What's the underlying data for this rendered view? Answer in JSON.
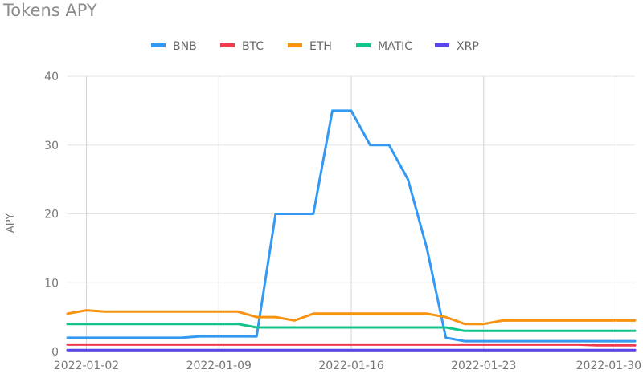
{
  "title": "Tokens APY",
  "chart_data": {
    "type": "line",
    "title": "Tokens APY",
    "xlabel": "",
    "ylabel": "APY",
    "ylim": [
      0,
      40
    ],
    "yticks": [
      0,
      10,
      20,
      30,
      40
    ],
    "x_tick_labels": [
      "2022-01-02",
      "2022-01-09",
      "2022-01-16",
      "2022-01-23",
      "2022-01-30"
    ],
    "grid": true,
    "legend_position": "top-center",
    "x": [
      "2022-01-01",
      "2022-01-02",
      "2022-01-03",
      "2022-01-04",
      "2022-01-05",
      "2022-01-06",
      "2022-01-07",
      "2022-01-08",
      "2022-01-09",
      "2022-01-10",
      "2022-01-11",
      "2022-01-12",
      "2022-01-13",
      "2022-01-14",
      "2022-01-15",
      "2022-01-16",
      "2022-01-17",
      "2022-01-18",
      "2022-01-19",
      "2022-01-20",
      "2022-01-21",
      "2022-01-22",
      "2022-01-23",
      "2022-01-24",
      "2022-01-25",
      "2022-01-26",
      "2022-01-27",
      "2022-01-28",
      "2022-01-29",
      "2022-01-30",
      "2022-01-31"
    ],
    "series": [
      {
        "name": "BNB",
        "color": "#3399f3",
        "values": [
          2,
          2,
          2,
          2,
          2,
          2,
          2,
          2.2,
          2.2,
          2.2,
          2.2,
          20,
          20,
          20,
          35,
          35,
          30,
          30,
          25,
          15,
          2,
          1.5,
          1.5,
          1.5,
          1.5,
          1.5,
          1.5,
          1.5,
          1.5,
          1.5,
          1.5
        ]
      },
      {
        "name": "BTC",
        "color": "#f03a4f",
        "values": [
          1,
          1,
          1,
          1,
          1,
          1,
          1,
          1,
          1,
          1,
          1,
          1,
          1,
          1,
          1,
          1,
          1,
          1,
          1,
          1,
          1,
          1,
          1,
          1,
          1,
          1,
          1,
          1,
          0.9,
          0.9,
          0.9
        ]
      },
      {
        "name": "ETH",
        "color": "#f7930f",
        "values": [
          5.5,
          6,
          5.8,
          5.8,
          5.8,
          5.8,
          5.8,
          5.8,
          5.8,
          5.8,
          5,
          5,
          4.5,
          5.5,
          5.5,
          5.5,
          5.5,
          5.5,
          5.5,
          5.5,
          5,
          4,
          4,
          4.5,
          4.5,
          4.5,
          4.5,
          4.5,
          4.5,
          4.5,
          4.5
        ]
      },
      {
        "name": "MATIC",
        "color": "#13c38b",
        "values": [
          4,
          4,
          4,
          4,
          4,
          4,
          4,
          4,
          4,
          4,
          3.5,
          3.5,
          3.5,
          3.5,
          3.5,
          3.5,
          3.5,
          3.5,
          3.5,
          3.5,
          3.5,
          3,
          3,
          3,
          3,
          3,
          3,
          3,
          3,
          3,
          3
        ]
      },
      {
        "name": "XRP",
        "color": "#5a44ec",
        "values": [
          0.2,
          0.2,
          0.2,
          0.2,
          0.2,
          0.2,
          0.2,
          0.2,
          0.2,
          0.2,
          0.2,
          0.2,
          0.2,
          0.2,
          0.2,
          0.2,
          0.2,
          0.2,
          0.2,
          0.2,
          0.2,
          0.2,
          0.2,
          0.2,
          0.2,
          0.2,
          0.2,
          0.2,
          0.2,
          0.2,
          0.2
        ]
      }
    ]
  }
}
